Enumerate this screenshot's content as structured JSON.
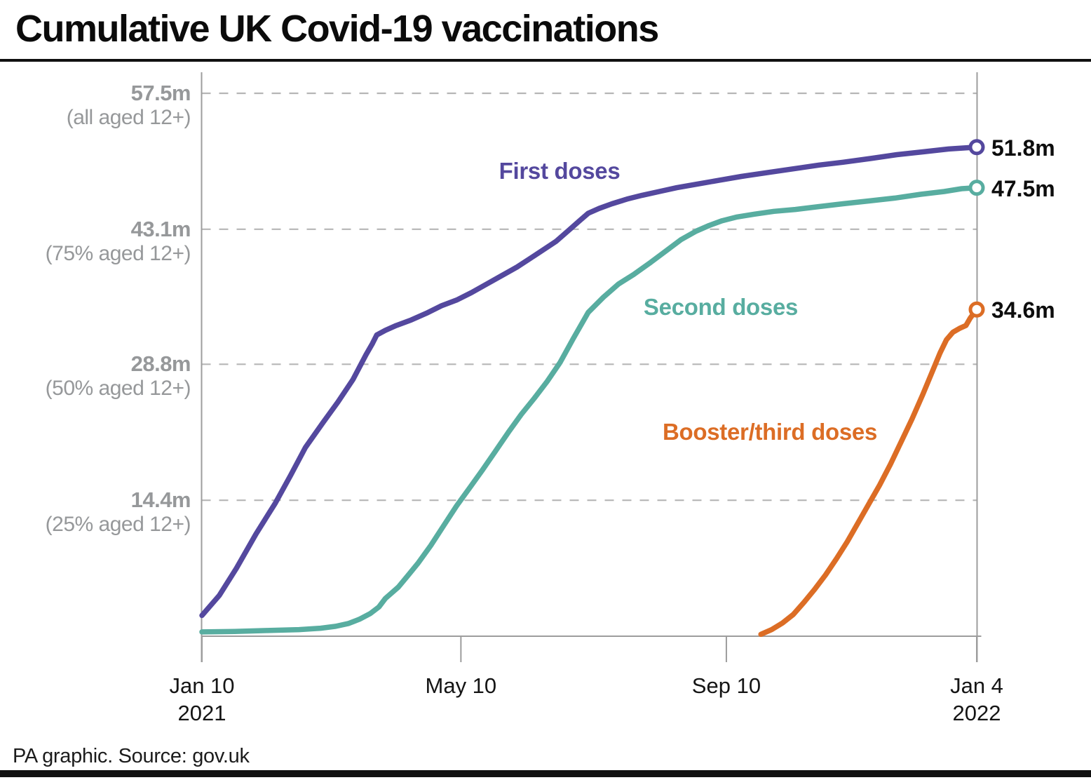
{
  "title": "Cumulative UK Covid-19 vaccinations",
  "footer": {
    "source": "PA graphic. Source: gov.uk"
  },
  "chart_data": {
    "type": "line",
    "title": "Cumulative UK Covid-19 vaccinations",
    "xlabel": "",
    "ylabel": "doses (millions)",
    "x_unit": "days since 10 Jan 2021",
    "ylim": [
      0,
      60
    ],
    "grid": true,
    "legend_position": "inline-labels",
    "x_axis": {
      "ticks": [
        {
          "label": "Jan 10",
          "sublabel": "2021",
          "day": 0
        },
        {
          "label": "May 10",
          "sublabel": "",
          "day": 120
        },
        {
          "label": "Sep 10",
          "sublabel": "",
          "day": 243
        },
        {
          "label": "Jan 4",
          "sublabel": "2022",
          "day": 359
        }
      ]
    },
    "y_axis": {
      "gridlines": [
        {
          "value": 57.5,
          "label": "57.5m",
          "sublabel": "(all aged 12+)"
        },
        {
          "value": 43.1,
          "label": "43.1m",
          "sublabel": "(75% aged 12+)"
        },
        {
          "value": 28.8,
          "label": "28.8m",
          "sublabel": "(50% aged 12+)"
        },
        {
          "value": 14.4,
          "label": "14.4m",
          "sublabel": "(25% aged 12+)"
        }
      ]
    },
    "series": [
      {
        "name": "First doses",
        "color": "#54489e",
        "end_value_m": 51.8,
        "end_value_label": "51.8m",
        "points": [
          [
            0,
            2.2
          ],
          [
            8,
            4.3
          ],
          [
            16,
            7.2
          ],
          [
            25,
            10.8
          ],
          [
            31,
            13.0
          ],
          [
            34,
            14.1
          ],
          [
            41,
            17.0
          ],
          [
            48,
            20.0
          ],
          [
            56,
            22.6
          ],
          [
            63,
            24.8
          ],
          [
            70,
            27.2
          ],
          [
            76,
            29.8
          ],
          [
            79,
            31.0
          ],
          [
            81,
            31.9
          ],
          [
            85,
            32.4
          ],
          [
            90,
            32.9
          ],
          [
            97,
            33.5
          ],
          [
            104,
            34.2
          ],
          [
            111,
            35.0
          ],
          [
            118,
            35.6
          ],
          [
            125,
            36.4
          ],
          [
            132,
            37.3
          ],
          [
            139,
            38.2
          ],
          [
            146,
            39.1
          ],
          [
            152,
            40.0
          ],
          [
            158,
            40.9
          ],
          [
            164,
            41.8
          ],
          [
            170,
            43.0
          ],
          [
            175,
            44.0
          ],
          [
            179,
            44.8
          ],
          [
            184,
            45.3
          ],
          [
            190,
            45.8
          ],
          [
            197,
            46.3
          ],
          [
            204,
            46.7
          ],
          [
            212,
            47.1
          ],
          [
            220,
            47.5
          ],
          [
            230,
            47.9
          ],
          [
            240,
            48.3
          ],
          [
            250,
            48.7
          ],
          [
            262,
            49.1
          ],
          [
            274,
            49.5
          ],
          [
            286,
            49.9
          ],
          [
            297,
            50.2
          ],
          [
            310,
            50.6
          ],
          [
            322,
            51.0
          ],
          [
            334,
            51.3
          ],
          [
            346,
            51.6
          ],
          [
            359,
            51.8
          ]
        ]
      },
      {
        "name": "Second doses",
        "color": "#58ada0",
        "end_value_m": 47.5,
        "end_value_label": "47.5m",
        "points": [
          [
            0,
            0.45
          ],
          [
            15,
            0.5
          ],
          [
            30,
            0.6
          ],
          [
            45,
            0.7
          ],
          [
            55,
            0.85
          ],
          [
            62,
            1.05
          ],
          [
            68,
            1.35
          ],
          [
            73,
            1.8
          ],
          [
            78,
            2.4
          ],
          [
            82,
            3.1
          ],
          [
            85,
            4.0
          ],
          [
            88,
            4.6
          ],
          [
            91,
            5.2
          ],
          [
            95,
            6.3
          ],
          [
            100,
            7.7
          ],
          [
            106,
            9.6
          ],
          [
            112,
            11.7
          ],
          [
            118,
            13.8
          ],
          [
            124,
            15.7
          ],
          [
            130,
            17.6
          ],
          [
            136,
            19.6
          ],
          [
            142,
            21.6
          ],
          [
            148,
            23.5
          ],
          [
            154,
            25.2
          ],
          [
            160,
            27.0
          ],
          [
            166,
            29.0
          ],
          [
            172,
            31.5
          ],
          [
            179,
            34.3
          ],
          [
            186,
            35.9
          ],
          [
            193,
            37.3
          ],
          [
            200,
            38.3
          ],
          [
            208,
            39.6
          ],
          [
            215,
            40.8
          ],
          [
            222,
            42.0
          ],
          [
            229,
            42.9
          ],
          [
            235,
            43.5
          ],
          [
            241,
            44.0
          ],
          [
            248,
            44.4
          ],
          [
            256,
            44.7
          ],
          [
            265,
            45.0
          ],
          [
            275,
            45.2
          ],
          [
            286,
            45.5
          ],
          [
            297,
            45.8
          ],
          [
            309,
            46.1
          ],
          [
            321,
            46.4
          ],
          [
            333,
            46.8
          ],
          [
            344,
            47.1
          ],
          [
            352,
            47.4
          ],
          [
            359,
            47.5
          ]
        ]
      },
      {
        "name": "Booster/third doses",
        "color": "#dc6d25",
        "end_value_m": 34.6,
        "end_value_label": "34.6m",
        "points": [
          [
            259,
            0.2
          ],
          [
            264,
            0.7
          ],
          [
            269,
            1.4
          ],
          [
            274,
            2.3
          ],
          [
            279,
            3.6
          ],
          [
            284,
            5.0
          ],
          [
            289,
            6.5
          ],
          [
            294,
            8.2
          ],
          [
            299,
            10.0
          ],
          [
            304,
            12.0
          ],
          [
            309,
            14.0
          ],
          [
            314,
            16.0
          ],
          [
            319,
            18.2
          ],
          [
            324,
            20.6
          ],
          [
            329,
            23.0
          ],
          [
            334,
            25.6
          ],
          [
            338,
            27.8
          ],
          [
            342,
            30.0
          ],
          [
            345,
            31.4
          ],
          [
            348,
            32.2
          ],
          [
            351,
            32.6
          ],
          [
            354,
            32.9
          ],
          [
            356,
            33.7
          ],
          [
            358,
            34.3
          ],
          [
            359,
            34.6
          ]
        ]
      }
    ]
  }
}
